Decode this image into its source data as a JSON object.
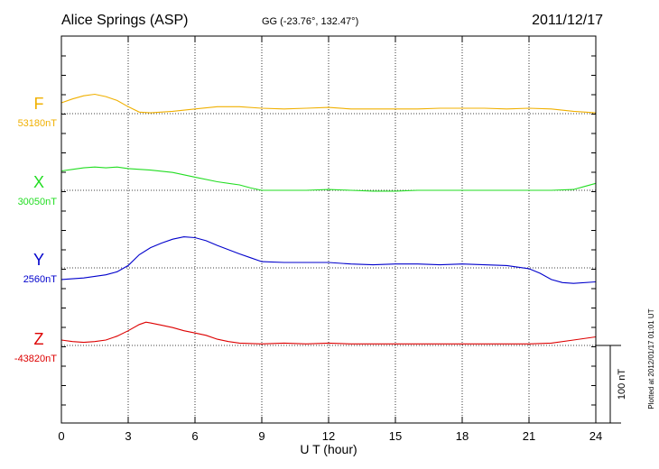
{
  "header": {
    "station": "Alice Springs (ASP)",
    "coords": "GG (-23.76°, 132.47°)",
    "date": "2011/12/17"
  },
  "footer_note": "Plotted at 2012/01/17 01:01 UT",
  "scale_label": "100 nT",
  "chart_data": {
    "type": "line",
    "xlabel": "U T (hour)",
    "xlim": [
      0,
      24
    ],
    "xticks": [
      "0",
      "3",
      "6",
      "9",
      "12",
      "15",
      "18",
      "21",
      "24"
    ],
    "scale_nT": 100,
    "series": [
      {
        "name": "F",
        "baseline_label": "53180nT",
        "baseline_nT": 53180,
        "color": "#f0b000",
        "x": [
          0,
          0.5,
          1,
          1.5,
          2,
          2.5,
          3,
          3.5,
          4,
          5,
          6,
          7,
          8,
          9,
          10,
          11,
          12,
          13,
          14,
          15,
          16,
          17,
          18,
          19,
          20,
          21,
          22,
          23,
          24
        ],
        "values": [
          53194,
          53199,
          53203,
          53205,
          53202,
          53197,
          53189,
          53182,
          53181,
          53183,
          53186,
          53189,
          53189,
          53187,
          53186,
          53187,
          53188,
          53186,
          53186,
          53186,
          53186,
          53187,
          53187,
          53187,
          53186,
          53187,
          53186,
          53183,
          53181
        ]
      },
      {
        "name": "X",
        "baseline_label": "30050nT",
        "baseline_nT": 30050,
        "color": "#22dd22",
        "x": [
          0,
          0.5,
          1,
          1.5,
          2,
          2.5,
          3,
          4,
          5,
          6,
          7,
          8,
          8.5,
          9,
          10,
          11,
          12,
          13,
          14,
          15,
          16,
          17,
          18,
          19,
          20,
          21,
          22,
          23,
          23.5,
          24
        ],
        "values": [
          30075,
          30077,
          30079,
          30080,
          30079,
          30080,
          30078,
          30076,
          30073,
          30067,
          30061,
          30057,
          30053,
          30050,
          30050,
          30050,
          30051,
          30050,
          30049,
          30049,
          30050,
          30050,
          30050,
          30050,
          30050,
          30050,
          30050,
          30051,
          30055,
          30059
        ]
      },
      {
        "name": "Y",
        "baseline_label": "2560nT",
        "baseline_nT": 2560,
        "color": "#0000cc",
        "x": [
          0,
          1,
          2,
          2.5,
          3,
          3.5,
          4,
          4.5,
          5,
          5.5,
          6,
          6.5,
          7,
          8,
          8.5,
          9,
          10,
          11,
          12,
          13,
          14,
          15,
          16,
          17,
          18,
          19,
          20,
          21,
          21.5,
          22,
          22.5,
          23,
          24
        ],
        "values": [
          2545,
          2547,
          2551,
          2555,
          2563,
          2577,
          2586,
          2592,
          2597,
          2600,
          2599,
          2595,
          2589,
          2578,
          2573,
          2568,
          2567,
          2567,
          2567,
          2565,
          2564,
          2565,
          2565,
          2564,
          2565,
          2564,
          2563,
          2559,
          2553,
          2545,
          2541,
          2540,
          2542
        ]
      },
      {
        "name": "Z",
        "baseline_label": "-43820nT",
        "baseline_nT": -43820,
        "color": "#dd0000",
        "x": [
          0,
          0.5,
          1,
          1.5,
          2,
          2.5,
          3,
          3.5,
          3.8,
          4,
          4.5,
          5,
          5.5,
          6,
          6.5,
          7,
          7.5,
          8,
          9,
          10,
          11,
          12,
          13,
          14,
          15,
          16,
          17,
          18,
          19,
          20,
          21,
          22,
          23,
          24
        ],
        "values": [
          -43813,
          -43815,
          -43816,
          -43815,
          -43813,
          -43808,
          -43801,
          -43793,
          -43790,
          -43791,
          -43794,
          -43797,
          -43801,
          -43804,
          -43807,
          -43812,
          -43815,
          -43817,
          -43818,
          -43817,
          -43818,
          -43817,
          -43818,
          -43818,
          -43818,
          -43818,
          -43818,
          -43818,
          -43818,
          -43818,
          -43818,
          -43817,
          -43813,
          -43809
        ]
      }
    ]
  }
}
